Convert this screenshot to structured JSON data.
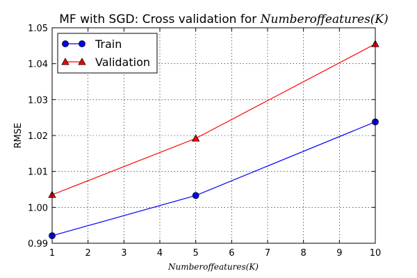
{
  "chart_data": {
    "type": "line",
    "title_prefix": "MF with SGD: Cross validation for",
    "title_math": "Numberoffeatures(K)",
    "xlabel": "Numberoffeatures(K)",
    "ylabel": "RMSE",
    "xlim": [
      1,
      10
    ],
    "ylim": [
      0.99,
      1.05
    ],
    "xticks": [
      1,
      2,
      3,
      4,
      5,
      6,
      7,
      8,
      9,
      10
    ],
    "xtick_labels": [
      "1",
      "2",
      "3",
      "4",
      "5",
      "6",
      "7",
      "8",
      "9",
      "10"
    ],
    "yticks": [
      0.99,
      1.0,
      1.01,
      1.02,
      1.03,
      1.04,
      1.05
    ],
    "ytick_labels": [
      "0.99",
      "1.00",
      "1.01",
      "1.02",
      "1.03",
      "1.04",
      "1.05"
    ],
    "grid": true,
    "legend_position": "top-left",
    "series": [
      {
        "name": "Train",
        "color": "#0000ff",
        "marker": "circle",
        "x": [
          1,
          5,
          10
        ],
        "y": [
          0.9921,
          1.0033,
          1.0238
        ]
      },
      {
        "name": "Validation",
        "color": "#ff0000",
        "marker": "triangle",
        "x": [
          1,
          5,
          10
        ],
        "y": [
          1.0035,
          1.0192,
          1.0455
        ]
      }
    ]
  }
}
